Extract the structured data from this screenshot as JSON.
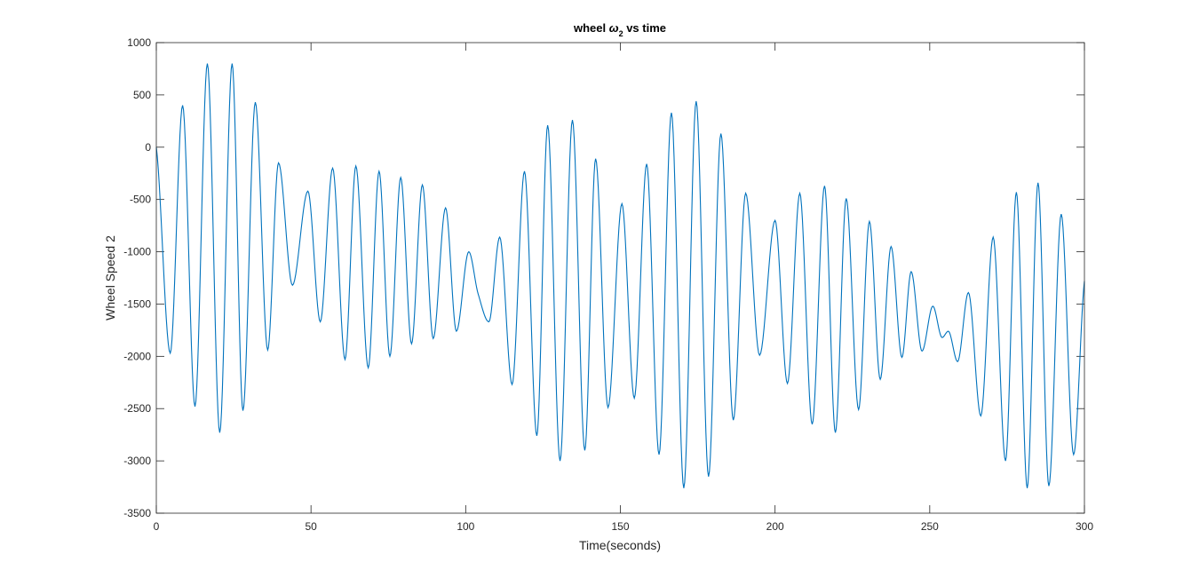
{
  "chart_data": {
    "type": "line",
    "title": "wheel ω2 vs time",
    "title_parts": {
      "pre": "wheel ",
      "symbol": "ω",
      "subscript": "2",
      "post": " vs time"
    },
    "xlabel": "Time(seconds)",
    "ylabel": "Wheel Speed 2",
    "xlim": [
      0,
      300
    ],
    "ylim": [
      -3500,
      1000
    ],
    "xticks": [
      0,
      50,
      100,
      150,
      200,
      250,
      300
    ],
    "xtick_labels": [
      "0",
      "50",
      "100",
      "150",
      "200",
      "250",
      "300"
    ],
    "yticks": [
      -3500,
      -3000,
      -2500,
      -2000,
      -1500,
      -1000,
      -500,
      0,
      500,
      1000
    ],
    "ytick_labels": [
      "-3500",
      "-3000",
      "-2500",
      "-2000",
      "-1500",
      "-1000",
      "-500",
      "0",
      "500",
      "1000"
    ],
    "grid": false,
    "series_color": "#0072BD",
    "series": [
      {
        "x": [
          0,
          4.5,
          8.5,
          12.5,
          16.5,
          20.5,
          24.5,
          28.0,
          32.0,
          36.0,
          39.5,
          44.0,
          49.0,
          53.0,
          57.0,
          61.0,
          64.5,
          68.5,
          72.0,
          75.5,
          79.0,
          82.5,
          86.0,
          89.5,
          93.5,
          97.0,
          101.0,
          104.0,
          107.5,
          111.0,
          115.0,
          119.0,
          123.0,
          126.5,
          130.5,
          134.5,
          138.5,
          142.0,
          146.0,
          150.5,
          154.5,
          158.5,
          162.5,
          166.5,
          170.5,
          174.5,
          178.5,
          182.5,
          186.5,
          190.5,
          195.0,
          200.0,
          204.0,
          208.0,
          212.0,
          216.0,
          219.5,
          223.0,
          227.0,
          230.5,
          234.0,
          237.5,
          241.0,
          244.0,
          247.5,
          251.0,
          254.0,
          256.0,
          259.0,
          262.5,
          266.5,
          270.5,
          274.5,
          278.0,
          281.5,
          285.0,
          288.5,
          292.5,
          296.5,
          300.0
        ],
        "y": [
          0,
          -1970,
          400,
          -2480,
          800,
          -2730,
          800,
          -2520,
          430,
          -1940,
          -150,
          -1320,
          -420,
          -1670,
          -200,
          -2030,
          -180,
          -2110,
          -230,
          -2000,
          -290,
          -1880,
          -360,
          -1830,
          -580,
          -1760,
          -1000,
          -1400,
          -1670,
          -860,
          -2270,
          -230,
          -2760,
          210,
          -3000,
          260,
          -2900,
          -110,
          -2490,
          -540,
          -2400,
          -160,
          -2940,
          330,
          -3260,
          440,
          -3150,
          130,
          -2610,
          -440,
          -1990,
          -700,
          -2260,
          -440,
          -2650,
          -370,
          -2730,
          -490,
          -2510,
          -710,
          -2220,
          -950,
          -2010,
          -1190,
          -1950,
          -1520,
          -1820,
          -1760,
          -2050,
          -1390,
          -2570,
          -860,
          -3000,
          -430,
          -3260,
          -340,
          -3240,
          -640,
          -2940,
          -1280
        ]
      }
    ]
  }
}
